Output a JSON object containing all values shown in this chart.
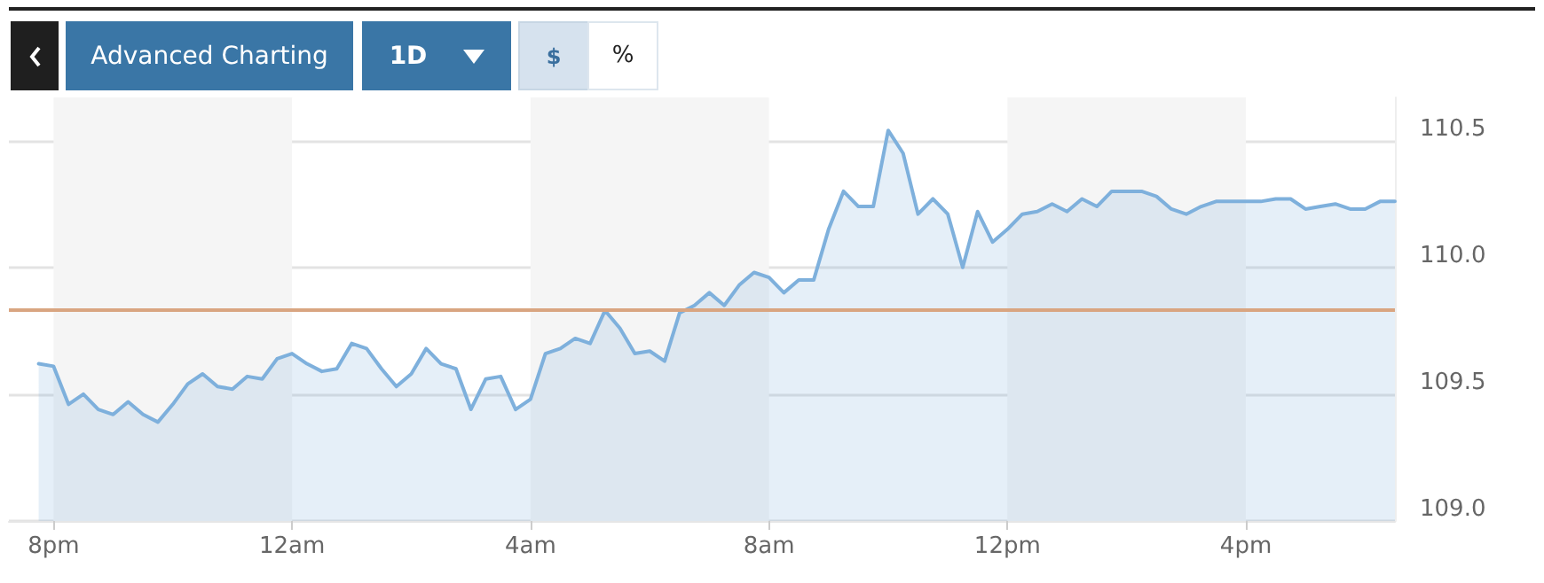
{
  "chart_data": {
    "type": "area",
    "annotations": [
      "Advanced Charting",
      "1D",
      "$",
      "%"
    ],
    "categories": [
      null,
      null,
      null,
      "8pm",
      null,
      null,
      null,
      null,
      null,
      null,
      null,
      null,
      null,
      null,
      null,
      null,
      null,
      null,
      null,
      "12am",
      null,
      null,
      null,
      null,
      null,
      null,
      null,
      null,
      null,
      null,
      null,
      null,
      null,
      null,
      null,
      "4am",
      null,
      null,
      null,
      null,
      null,
      null,
      null,
      null,
      null,
      null,
      null,
      null,
      null,
      null,
      null,
      "8am",
      null,
      null,
      null,
      null,
      null,
      null,
      null,
      null,
      null,
      null,
      null,
      null,
      null,
      null,
      null,
      "12pm",
      null,
      null,
      null,
      null,
      null,
      null,
      null,
      null,
      null,
      null,
      null,
      null,
      null,
      null,
      null,
      "4pm",
      null,
      null,
      null,
      null,
      null,
      null,
      null,
      null,
      null,
      null
    ],
    "series": [
      {
        "color": "#7eb0dc",
        "values": [
          null,
          null,
          109.62,
          109.61,
          109.46,
          109.5,
          109.44,
          109.42,
          109.47,
          109.42,
          109.39,
          109.46,
          109.54,
          109.58,
          109.53,
          109.52,
          109.57,
          109.56,
          109.64,
          109.66,
          109.62,
          109.59,
          109.6,
          109.7,
          109.68,
          109.6,
          109.53,
          109.58,
          109.68,
          109.62,
          109.6,
          109.44,
          109.56,
          109.57,
          109.44,
          109.48,
          109.66,
          109.68,
          109.72,
          109.7,
          109.83,
          109.76,
          109.66,
          109.67,
          109.63,
          109.82,
          109.85,
          109.9,
          109.85,
          109.93,
          109.98,
          109.96,
          109.9,
          109.95,
          109.95,
          110.15,
          110.3,
          110.24,
          110.24,
          110.54,
          110.45,
          110.21,
          110.27,
          110.21,
          110.0,
          110.22,
          110.1,
          110.15,
          110.21,
          110.22,
          110.25,
          110.22,
          110.27,
          110.24,
          110.3,
          110.3,
          110.3,
          110.28,
          110.23,
          110.21,
          110.24,
          110.26,
          110.26,
          110.26,
          110.26,
          110.27,
          110.27,
          110.23,
          110.24,
          110.25,
          110.23,
          110.23,
          110.26,
          110.26
        ]
      }
    ],
    "ylim": [
      109.0,
      110.67
    ],
    "yticks": [
      {
        "value": 109.0,
        "label": "109.0"
      },
      109.5,
      {
        "value": 110.0,
        "label": "110.0"
      },
      110.5
    ],
    "ref_lines": [
      {
        "axis": "y",
        "value": 109.83,
        "color": "#d9a581"
      }
    ],
    "bands": [
      {
        "axis": "x",
        "from": "8pm",
        "to": "12am",
        "color": "#f5f5f5"
      },
      {
        "axis": "x",
        "from": "4am",
        "to": "8am",
        "color": "#f5f5f5"
      },
      {
        "axis": "x",
        "from": "12pm",
        "to": "4pm",
        "color": "#f5f5f5"
      }
    ],
    "grid": "y",
    "marker": "none",
    "line_style": "solid"
  }
}
